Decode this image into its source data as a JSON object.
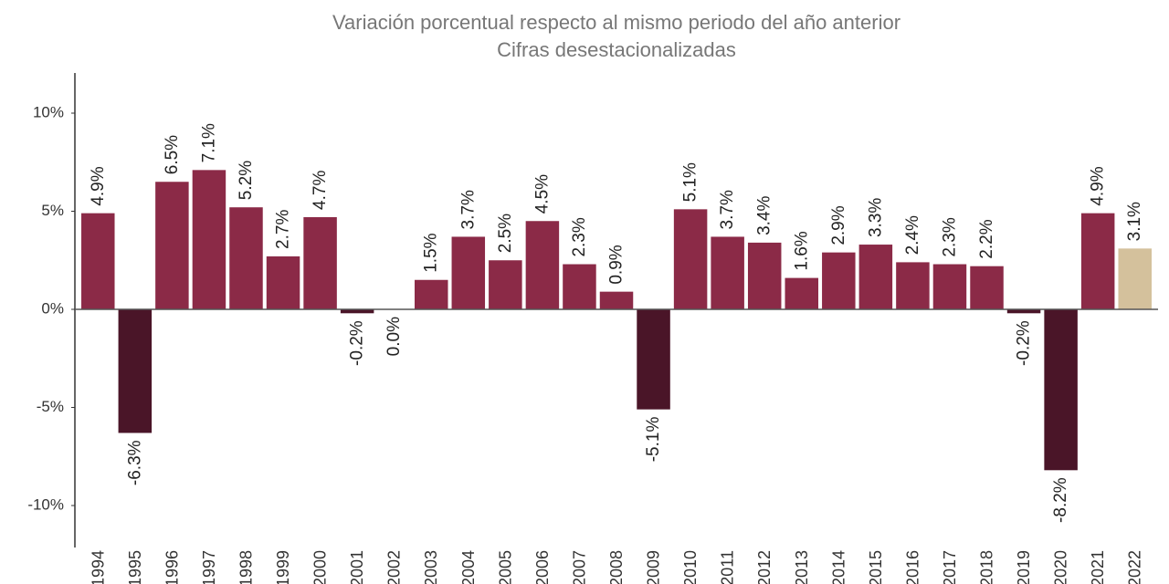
{
  "chart_data": {
    "type": "bar",
    "title": "Variación porcentual respecto al mismo periodo del año anterior",
    "subtitle": "Cifras desestacionalizadas",
    "categories": [
      "1994",
      "1995",
      "1996",
      "1997",
      "1998",
      "1999",
      "2000",
      "2001",
      "2002",
      "2003",
      "2004",
      "2005",
      "2006",
      "2007",
      "2008",
      "2009",
      "2010",
      "2011",
      "2012",
      "2013",
      "2014",
      "2015",
      "2016",
      "2017",
      "2018",
      "2019",
      "2020",
      "2021",
      "2022"
    ],
    "values": [
      4.9,
      -6.3,
      6.5,
      7.1,
      5.2,
      2.7,
      4.7,
      -0.2,
      0.0,
      1.5,
      3.7,
      2.5,
      4.5,
      2.3,
      0.9,
      -5.1,
      5.1,
      3.7,
      3.4,
      1.6,
      2.9,
      3.3,
      2.4,
      2.3,
      2.2,
      -0.2,
      -8.2,
      4.9,
      3.1
    ],
    "value_labels": [
      "4.9%",
      "-6.3%",
      "6.5%",
      "7.1%",
      "5.2%",
      "2.7%",
      "4.7%",
      "-0.2%",
      "0.0%",
      "1.5%",
      "3.7%",
      "2.5%",
      "4.5%",
      "2.3%",
      "0.9%",
      "-5.1%",
      "5.1%",
      "3.7%",
      "3.4%",
      "1.6%",
      "2.9%",
      "3.3%",
      "2.4%",
      "2.3%",
      "2.2%",
      "-0.2%",
      "-8.2%",
      "4.9%",
      "3.1%"
    ],
    "colors": [
      "#8b2a47",
      "#4a1528",
      "#8b2a47",
      "#8b2a47",
      "#8b2a47",
      "#8b2a47",
      "#8b2a47",
      "#4a1528",
      "#4a1528",
      "#8b2a47",
      "#8b2a47",
      "#8b2a47",
      "#8b2a47",
      "#8b2a47",
      "#8b2a47",
      "#4a1528",
      "#8b2a47",
      "#8b2a47",
      "#8b2a47",
      "#8b2a47",
      "#8b2a47",
      "#8b2a47",
      "#8b2a47",
      "#8b2a47",
      "#8b2a47",
      "#4a1528",
      "#4a1528",
      "#8b2a47",
      "#d4c19c"
    ],
    "ylim": [
      -12,
      12
    ],
    "yticks": [
      {
        "value": -10,
        "label": "-10%"
      },
      {
        "value": -5,
        "label": "-5%"
      },
      {
        "value": 0,
        "label": "0%"
      },
      {
        "value": 5,
        "label": "5%"
      },
      {
        "value": 10,
        "label": "10%"
      }
    ],
    "grid": false
  }
}
